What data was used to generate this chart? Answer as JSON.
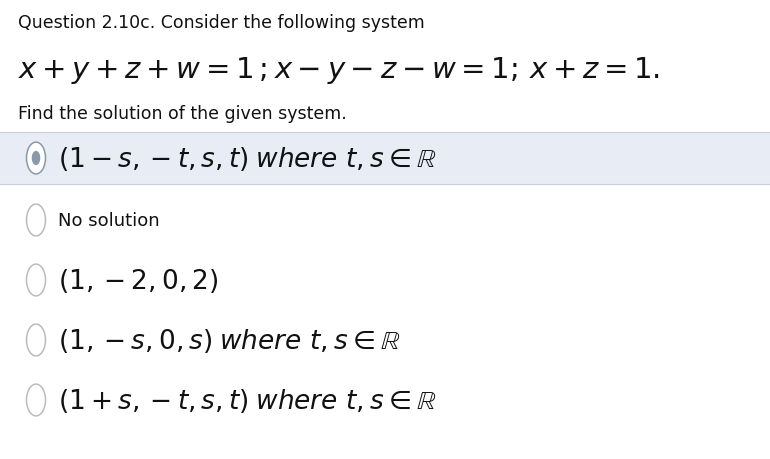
{
  "title": "Question 2.10c. Consider the following system",
  "subtitle": "Find the solution of the given system.",
  "options": [
    {
      "selected": true
    },
    {
      "selected": false
    },
    {
      "selected": false
    },
    {
      "selected": false
    },
    {
      "selected": false
    }
  ],
  "selected_bg_color": "#e8edf5",
  "selected_border_top_color": "#c8d0dc",
  "selected_border_bot_color": "#c8d0dc",
  "radio_color_selected_outer": "#8899aa",
  "radio_color_selected_inner": "#8899aa",
  "radio_color_unselected": "#bbbbbb",
  "bg_color": "#ffffff",
  "text_color": "#111111",
  "title_fontsize": 12.5,
  "subtitle_fontsize": 12.5,
  "option_fontsize_selected": 19,
  "option_fontsize_other": 19
}
